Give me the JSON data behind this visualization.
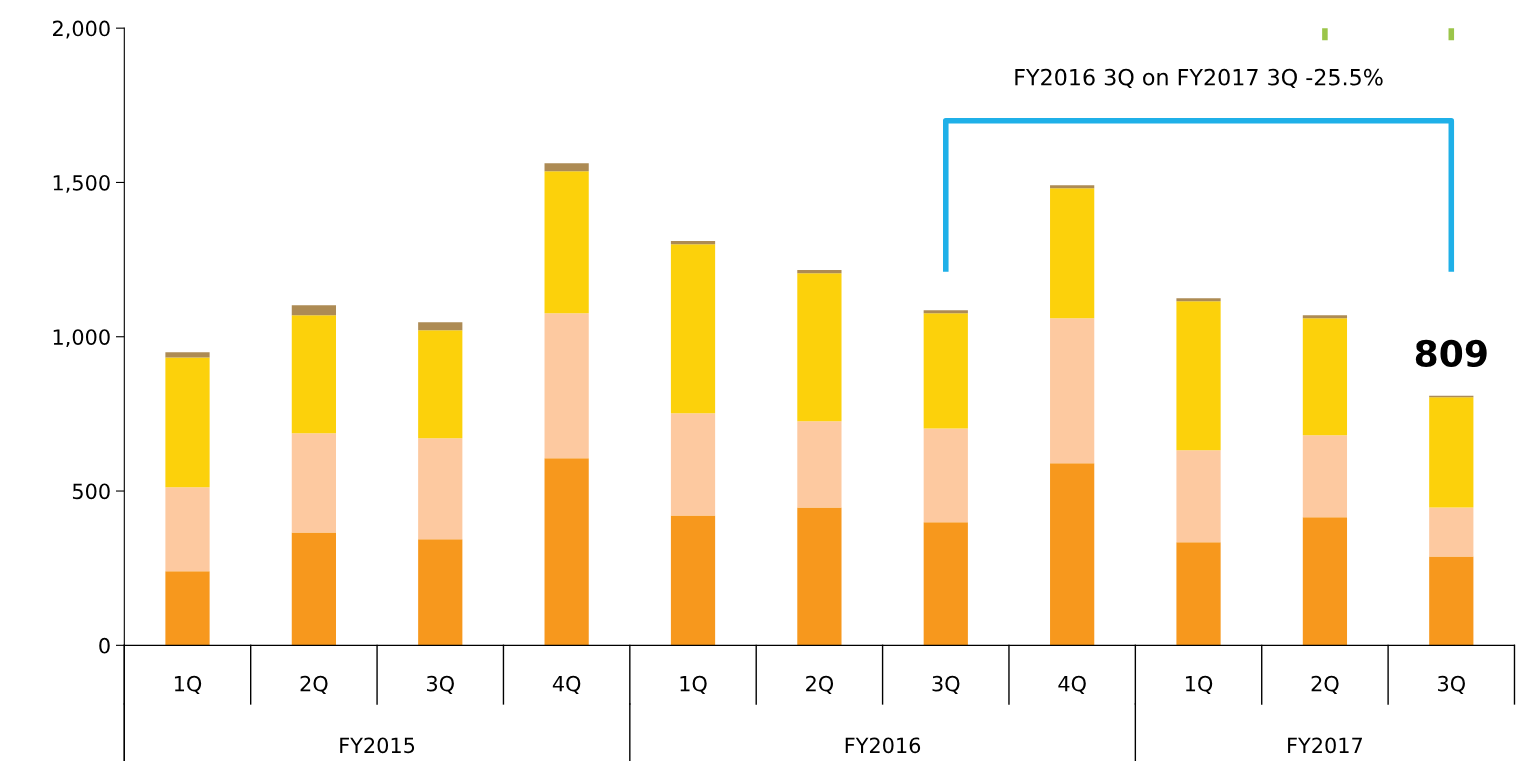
{
  "chart_data": {
    "type": "bar",
    "stacked": true,
    "categories": [
      "1Q",
      "2Q",
      "3Q",
      "4Q",
      "1Q",
      "2Q",
      "3Q",
      "4Q",
      "1Q",
      "2Q",
      "3Q"
    ],
    "series": [
      {
        "color": "#f7981d",
        "values": [
          240,
          366,
          344,
          606,
          421,
          447,
          399,
          590,
          334,
          415,
          288
        ]
      },
      {
        "color": "#fdc9a0",
        "values": [
          272,
          321,
          327,
          470,
          331,
          279,
          304,
          470,
          298,
          266,
          159
        ]
      },
      {
        "color": "#fcd10b",
        "values": [
          421,
          383,
          350,
          460,
          548,
          480,
          373,
          421,
          483,
          379,
          357
        ]
      },
      {
        "color": "#ad8b54",
        "values": [
          17,
          32,
          26,
          26,
          10,
          10,
          10,
          10,
          10,
          10,
          5
        ]
      }
    ],
    "ylim": [
      0,
      2000
    ],
    "yticks": [
      0,
      {
        "value": 500,
        "label": "500"
      },
      {
        "value": 1000,
        "label": "1,000"
      },
      {
        "value": 1500,
        "label": "1,500"
      },
      {
        "value": 2000,
        "label": "2,000"
      }
    ],
    "grid": false,
    "annotations": [
      "FY2015",
      "FY2016",
      "FY2017",
      {
        "text": "809",
        "y": 809
      },
      "FY2016 3Q on FY2017 3Q -25.5%"
    ]
  }
}
